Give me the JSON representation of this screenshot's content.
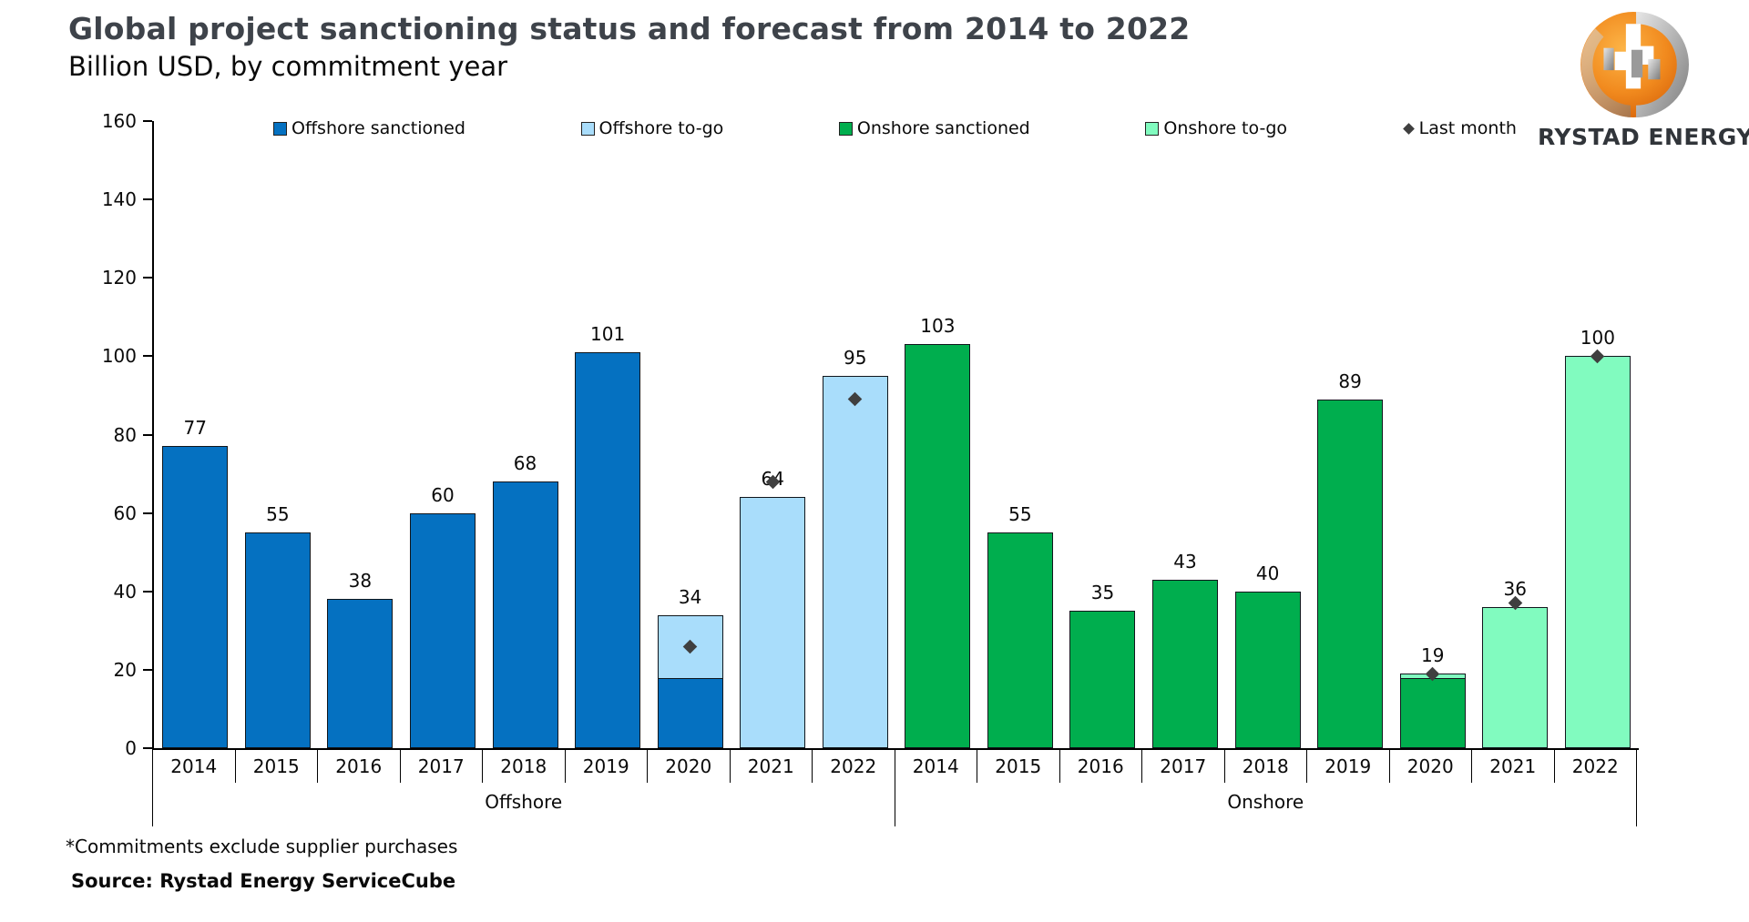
{
  "logo": {
    "text": "RYSTAD ENERGY"
  },
  "chart_data": {
    "type": "bar",
    "title": "Global project sanctioning status and forecast from 2014 to 2022",
    "subtitle": "Billion USD, by commitment year",
    "xlabel": "",
    "ylabel": "",
    "ylim": [
      0,
      160
    ],
    "ytick_step": 20,
    "grid": false,
    "legend_position": "top",
    "legend": [
      {
        "label": "Offshore sanctioned",
        "swatch": "square",
        "color": "#0571c1"
      },
      {
        "label": "Offshore to-go",
        "swatch": "square",
        "color": "#a9ddfb"
      },
      {
        "label": "Onshore sanctioned",
        "swatch": "square",
        "color": "#00ae4e"
      },
      {
        "label": "Onshore to-go",
        "swatch": "square",
        "color": "#81fbbf"
      },
      {
        "label": "Last month",
        "swatch": "diamond",
        "color": "#3f3f3f"
      }
    ],
    "marker_color": "#3f3f3f",
    "groups": [
      {
        "name": "Offshore",
        "sanctioned_color": "#0571c1",
        "togo_color": "#a9ddfb",
        "bars": [
          {
            "year": "2014",
            "sanctioned": 77,
            "togo": 0,
            "total": 77,
            "label": "77",
            "last_month": null
          },
          {
            "year": "2015",
            "sanctioned": 55,
            "togo": 0,
            "total": 55,
            "label": "55",
            "last_month": null
          },
          {
            "year": "2016",
            "sanctioned": 38,
            "togo": 0,
            "total": 38,
            "label": "38",
            "last_month": null
          },
          {
            "year": "2017",
            "sanctioned": 60,
            "togo": 0,
            "total": 60,
            "label": "60",
            "last_month": null
          },
          {
            "year": "2018",
            "sanctioned": 68,
            "togo": 0,
            "total": 68,
            "label": "68",
            "last_month": null
          },
          {
            "year": "2019",
            "sanctioned": 101,
            "togo": 0,
            "total": 101,
            "label": "101",
            "last_month": null
          },
          {
            "year": "2020",
            "sanctioned": 18,
            "togo": 16,
            "total": 34,
            "label": "34",
            "last_month": 26
          },
          {
            "year": "2021",
            "sanctioned": 0,
            "togo": 64,
            "total": 64,
            "label": "64",
            "last_month": 68
          },
          {
            "year": "2022",
            "sanctioned": 0,
            "togo": 95,
            "total": 95,
            "label": "95",
            "last_month": 89
          }
        ]
      },
      {
        "name": "Onshore",
        "sanctioned_color": "#00ae4e",
        "togo_color": "#81fbbf",
        "bars": [
          {
            "year": "2014",
            "sanctioned": 103,
            "togo": 0,
            "total": 103,
            "label": "103",
            "last_month": null
          },
          {
            "year": "2015",
            "sanctioned": 55,
            "togo": 0,
            "total": 55,
            "label": "55",
            "last_month": null
          },
          {
            "year": "2016",
            "sanctioned": 35,
            "togo": 0,
            "total": 35,
            "label": "35",
            "last_month": null
          },
          {
            "year": "2017",
            "sanctioned": 43,
            "togo": 0,
            "total": 43,
            "label": "43",
            "last_month": null
          },
          {
            "year": "2018",
            "sanctioned": 40,
            "togo": 0,
            "total": 40,
            "label": "40",
            "last_month": null
          },
          {
            "year": "2019",
            "sanctioned": 89,
            "togo": 0,
            "total": 89,
            "label": "89",
            "last_month": null
          },
          {
            "year": "2020",
            "sanctioned": 18,
            "togo": 1,
            "total": 19,
            "label": "19",
            "last_month": 19
          },
          {
            "year": "2021",
            "sanctioned": 0,
            "togo": 36,
            "total": 36,
            "label": "36",
            "last_month": 37
          },
          {
            "year": "2022",
            "sanctioned": 0,
            "togo": 100,
            "total": 100,
            "label": "100",
            "last_month": 100
          }
        ]
      }
    ],
    "footnote": "*Commitments exclude supplier purchases",
    "source": "Source: Rystad Energy ServiceCube"
  }
}
